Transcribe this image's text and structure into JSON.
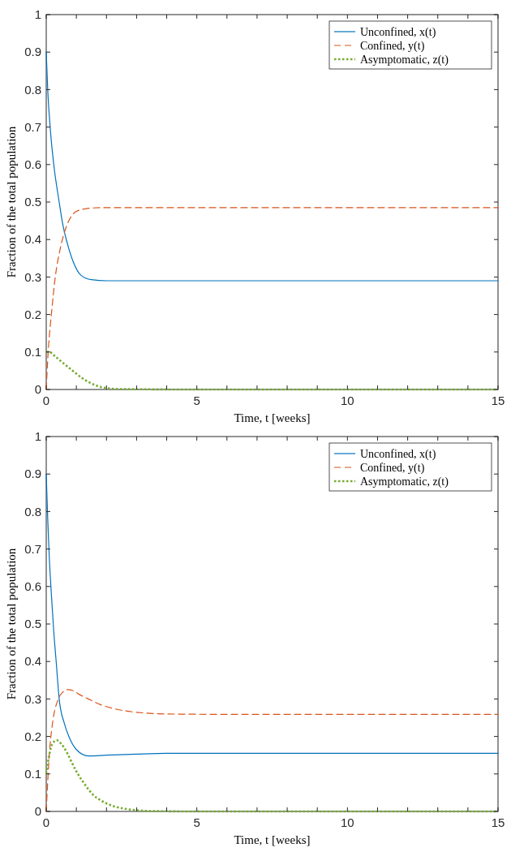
{
  "chart_data": [
    {
      "type": "line",
      "xlabel": "Time, t [weeks]",
      "ylabel": "Fraction of the total population",
      "xlim": [
        0,
        15
      ],
      "ylim": [
        0,
        1
      ],
      "xticks": [
        0,
        {
          "value": 1,
          "label": null
        },
        {
          "value": 2,
          "label": null
        },
        {
          "value": 3,
          "label": null
        },
        {
          "value": 4,
          "label": null
        },
        5,
        {
          "value": 6,
          "label": null
        },
        {
          "value": 7,
          "label": null
        },
        {
          "value": 8,
          "label": null
        },
        {
          "value": 9,
          "label": null
        },
        10,
        {
          "value": 11,
          "label": null
        },
        {
          "value": 12,
          "label": null
        },
        {
          "value": 13,
          "label": null
        },
        {
          "value": 14,
          "label": null
        },
        15
      ],
      "yticks": [
        0,
        0.1,
        0.2,
        0.3,
        0.4,
        0.5,
        0.6,
        0.7,
        0.8,
        0.9,
        1
      ],
      "legend": "top right",
      "grid": false,
      "series": [
        {
          "name": "Unconfined, x(t)",
          "color": "#0072bd",
          "line_style": "solid",
          "x": [
            0,
            0.05,
            0.13,
            0.25,
            0.43,
            0.55,
            0.7,
            0.9,
            1.15,
            1.5,
            2,
            3,
            5,
            10,
            15
          ],
          "values": [
            0.9,
            0.8,
            0.7,
            0.6,
            0.5,
            0.44,
            0.39,
            0.34,
            0.305,
            0.293,
            0.29,
            0.29,
            0.29,
            0.29,
            0.29
          ]
        },
        {
          "name": "Confined, y(t)",
          "color": "#d95319",
          "line_style": "dashed",
          "x": [
            0,
            0.05,
            0.1,
            0.17,
            0.3,
            0.45,
            0.57,
            0.75,
            1,
            1.3,
            1.8,
            3,
            5,
            10,
            15
          ],
          "values": [
            0,
            0.08,
            0.14,
            0.2,
            0.3,
            0.37,
            0.41,
            0.45,
            0.475,
            0.482,
            0.485,
            0.485,
            0.485,
            0.485,
            0.485
          ]
        },
        {
          "name": "Asymptomatic, z(t)",
          "color": "#77ac30",
          "line_style": "dotted",
          "x": [
            0,
            0.1,
            0.3,
            0.6,
            0.88,
            1.2,
            1.5,
            1.9,
            2.5,
            5,
            10,
            15
          ],
          "values": [
            0.1,
            0.1,
            0.088,
            0.068,
            0.05,
            0.03,
            0.016,
            0.005,
            0.001,
            0,
            0,
            0
          ]
        }
      ]
    },
    {
      "type": "line",
      "xlabel": "Time, t [weeks]",
      "ylabel": "Fraction of the total population",
      "xlim": [
        0,
        15
      ],
      "ylim": [
        0,
        1
      ],
      "xticks": [
        0,
        {
          "value": 1,
          "label": null
        },
        {
          "value": 2,
          "label": null
        },
        {
          "value": 3,
          "label": null
        },
        {
          "value": 4,
          "label": null
        },
        5,
        {
          "value": 6,
          "label": null
        },
        {
          "value": 7,
          "label": null
        },
        {
          "value": 8,
          "label": null
        },
        {
          "value": 9,
          "label": null
        },
        10,
        {
          "value": 11,
          "label": null
        },
        {
          "value": 12,
          "label": null
        },
        {
          "value": 13,
          "label": null
        },
        {
          "value": 14,
          "label": null
        },
        15
      ],
      "yticks": [
        0,
        0.1,
        0.2,
        0.3,
        0.4,
        0.5,
        0.6,
        0.7,
        0.8,
        0.9,
        1
      ],
      "legend": "top right",
      "grid": false,
      "series": [
        {
          "name": "Unconfined, x(t)",
          "color": "#0072bd",
          "line_style": "solid",
          "x": [
            0,
            0.05,
            0.1,
            0.17,
            0.25,
            0.33,
            0.43,
            0.6,
            0.75,
            1,
            1.4,
            2,
            3,
            4,
            6,
            10,
            15
          ],
          "values": [
            0.9,
            0.78,
            0.68,
            0.58,
            0.48,
            0.4,
            0.3,
            0.235,
            0.2,
            0.165,
            0.148,
            0.15,
            0.153,
            0.155,
            0.155,
            0.155,
            0.155
          ]
        },
        {
          "name": "Confined, y(t)",
          "color": "#d95319",
          "line_style": "dashed",
          "x": [
            0,
            0.05,
            0.1,
            0.2,
            0.4,
            0.55,
            0.7,
            0.9,
            1.1,
            1.4,
            1.8,
            2.5,
            3.2,
            4,
            6,
            10,
            15
          ],
          "values": [
            0,
            0.08,
            0.15,
            0.23,
            0.3,
            0.318,
            0.325,
            0.322,
            0.312,
            0.3,
            0.285,
            0.27,
            0.263,
            0.26,
            0.259,
            0.259,
            0.259
          ]
        },
        {
          "name": "Asymptomatic, z(t)",
          "color": "#77ac30",
          "line_style": "dotted",
          "x": [
            0,
            0.1,
            0.2,
            0.35,
            0.5,
            0.7,
            0.85,
            1.05,
            1.3,
            1.55,
            1.8,
            2.2,
            2.8,
            3.5,
            5,
            10,
            15
          ],
          "values": [
            0.1,
            0.15,
            0.18,
            0.19,
            0.18,
            0.155,
            0.13,
            0.1,
            0.07,
            0.045,
            0.03,
            0.015,
            0.005,
            0.001,
            0,
            0,
            0
          ]
        }
      ]
    }
  ]
}
